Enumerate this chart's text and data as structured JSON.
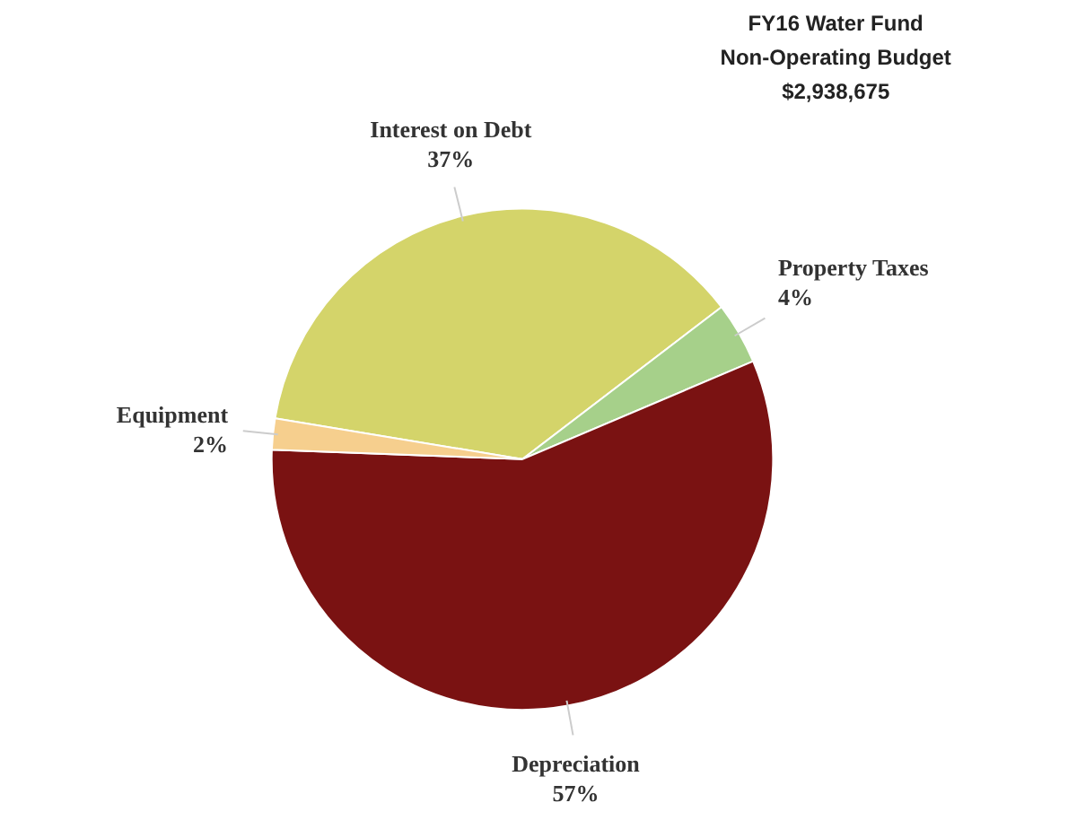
{
  "chart_data": {
    "type": "pie",
    "title": "FY16 Water Fund\nNon-Operating Budget\n$2,938,675",
    "categories": [
      "Interest on Debt",
      "Property Taxes",
      "Depreciation",
      "Equipment"
    ],
    "values": [
      37,
      4,
      57,
      2
    ],
    "value_labels": [
      "37%",
      "4%",
      "57%",
      "2%"
    ],
    "colors": [
      "#d4d46a",
      "#a6d08a",
      "#7a1212",
      "#f6cf8e"
    ]
  }
}
